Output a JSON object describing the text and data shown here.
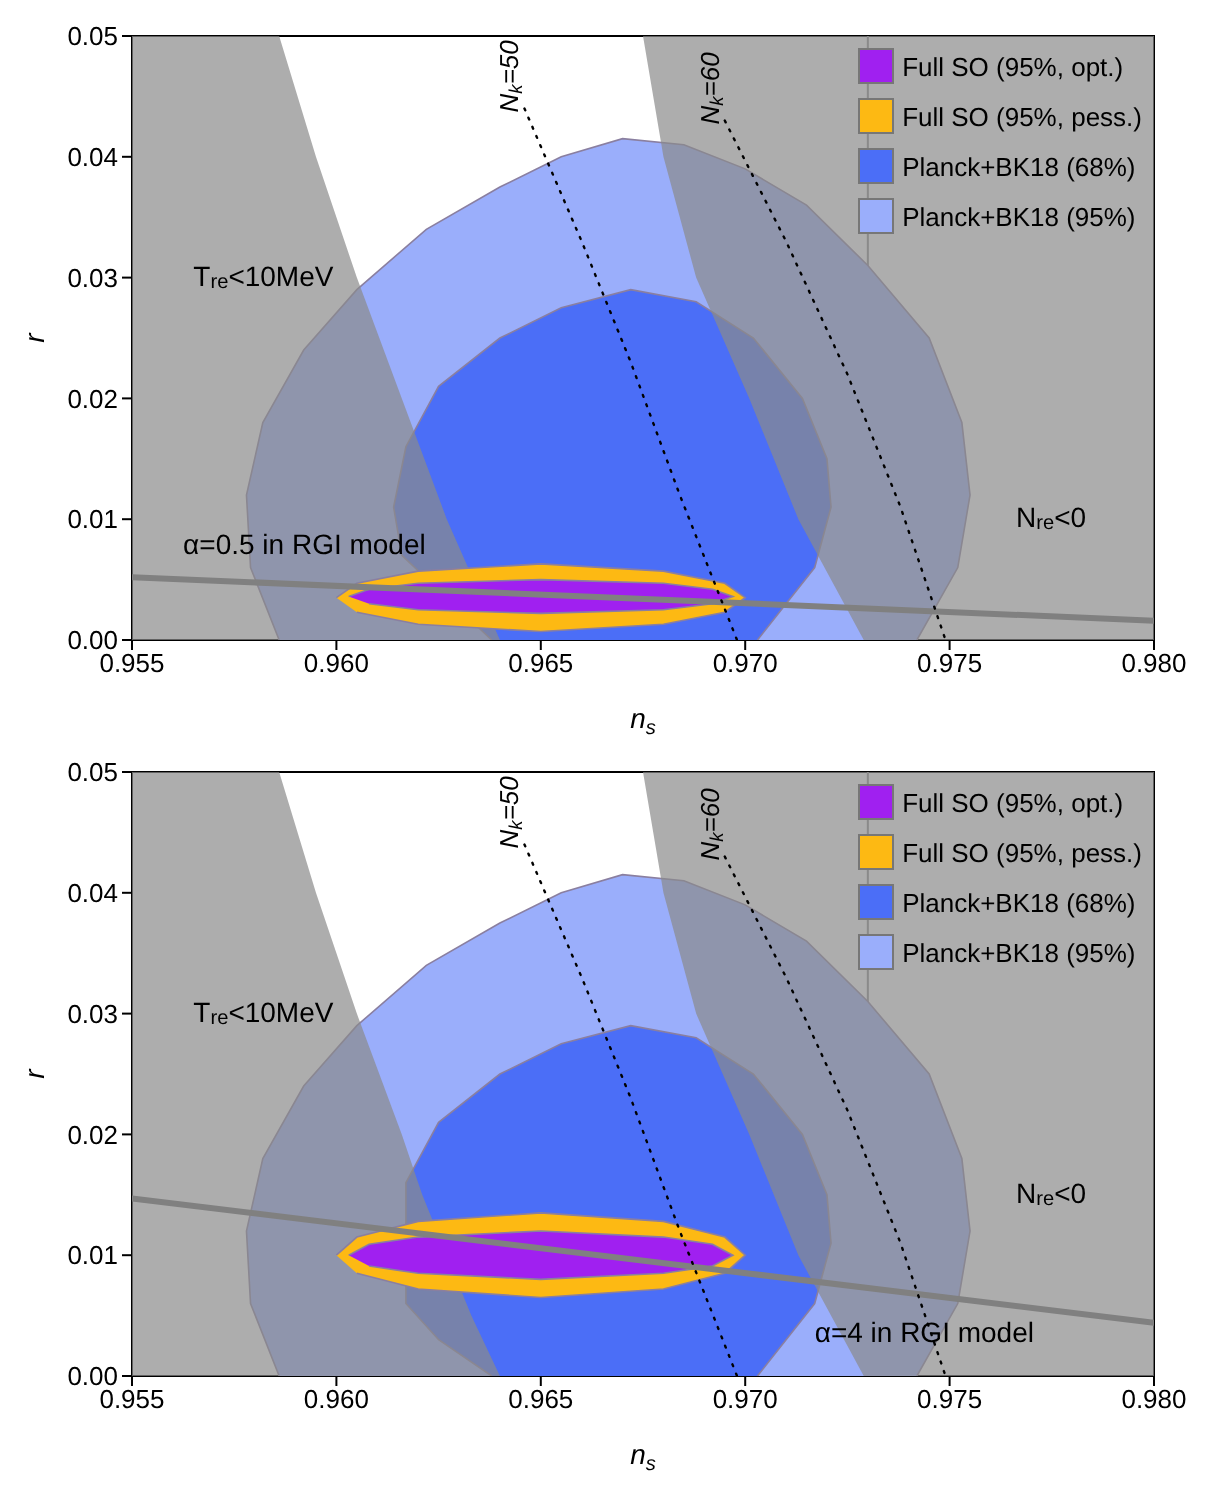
{
  "chart_data": [
    {
      "type": "area",
      "xlabel": "n$_{s}$",
      "ylabel": "r",
      "xlim": [
        0.955,
        0.98
      ],
      "ylim": [
        0,
        0.05
      ],
      "xticks": [
        0.955,
        {
          "value": 0.96,
          "label": "0.960"
        },
        0.965,
        {
          "value": 0.97,
          "label": "0.970"
        },
        0.975,
        {
          "value": 0.98,
          "label": "0.980"
        }
      ],
      "yticks": [
        {
          "value": 0,
          "label": "0.00"
        },
        0.01,
        0.02,
        0.03,
        0.04,
        0.05
      ],
      "legend": "top right",
      "series": [
        {
          "name": "Planck+BK18 (95%)",
          "color": "#9aaefb",
          "x": [
            0.9586,
            0.9579,
            0.9578,
            0.9582,
            0.9592,
            0.9605,
            0.9622,
            0.964,
            0.9655,
            0.967,
            0.9685,
            0.97,
            0.9715,
            0.973,
            0.9745,
            0.9753,
            0.9755,
            0.9752,
            0.9742
          ],
          "values": [
            0,
            0.006,
            0.012,
            0.018,
            0.024,
            0.029,
            0.034,
            0.0375,
            0.04,
            0.0415,
            0.041,
            0.039,
            0.036,
            0.031,
            0.025,
            0.018,
            0.012,
            0.006,
            0
          ]
        },
        {
          "name": "Planck+BK18 (68%)",
          "color": "#4b6ef7",
          "x": [
            0.9638,
            0.9616,
            0.9614,
            0.9617,
            0.9625,
            0.964,
            0.9655,
            0.9672,
            0.9688,
            0.9702,
            0.9714,
            0.972,
            0.9721,
            0.9717,
            0.971,
            0.9703
          ],
          "values": [
            0,
            0.007,
            0.011,
            0.016,
            0.021,
            0.025,
            0.0275,
            0.029,
            0.028,
            0.025,
            0.02,
            0.015,
            0.011,
            0.006,
            0.003,
            0
          ]
        },
        {
          "color": "#8a8a8a",
          "x": [
            0.955,
            0.9586,
            0.9595,
            0.9605,
            0.9616,
            0.9627,
            0.964,
            0.955
          ],
          "values": [
            0.05,
            0.05,
            0.04,
            0.03,
            0.02,
            0.01,
            0,
            0
          ]
        },
        {
          "color": "#8a8a8a",
          "x": [
            0.9675,
            0.98,
            0.98,
            0.9729,
            0.9713,
            0.9701,
            0.9688,
            0.968
          ],
          "values": [
            0.05,
            0.05,
            0,
            0,
            0.01,
            0.02,
            0.03,
            0.04
          ]
        },
        {
          "name": "Full SO (95%, pess.)",
          "color": "#fdb913",
          "x": [
            0.96,
            0.9605,
            0.962,
            0.965,
            0.968,
            0.9695,
            0.97,
            0.9695,
            0.968,
            0.965,
            0.962,
            0.9605
          ],
          "values": [
            0.0035,
            0.0047,
            0.0057,
            0.0063,
            0.0057,
            0.0047,
            0.0035,
            0.0023,
            0.0013,
            0.0007,
            0.0013,
            0.0023
          ]
        },
        {
          "name": "Full SO (95%, opt.)",
          "color": "#a020f0",
          "x": [
            0.9603,
            0.9608,
            0.962,
            0.965,
            0.968,
            0.9692,
            0.9697,
            0.9692,
            0.968,
            0.965,
            0.962,
            0.9608
          ],
          "values": [
            0.0036,
            0.0042,
            0.0047,
            0.005,
            0.0047,
            0.0042,
            0.0036,
            0.003,
            0.0025,
            0.0022,
            0.0025,
            0.003
          ]
        },
        {
          "type": "line",
          "color": "#808080",
          "x": [
            0.955,
            0.98
          ],
          "values": [
            0.0052,
            0.0016
          ]
        },
        {
          "name": "N$_{k}$=50",
          "type": "line",
          "line_style": "dotted",
          "color": "#000000",
          "x": [
            0.9646,
            0.966,
            0.9672,
            0.9684,
            0.9698
          ],
          "values": [
            0.044,
            0.033,
            0.023,
            0.012,
            0
          ]
        },
        {
          "name": "N$_{k}$=60",
          "type": "line",
          "line_style": "dotted",
          "color": "#000000",
          "x": [
            0.9695,
            0.971,
            0.9725,
            0.9738,
            0.9749
          ],
          "values": [
            0.043,
            0.033,
            0.022,
            0.011,
            0
          ]
        }
      ],
      "ref_lines": [
        {
          "axis": "x",
          "value": 0.973,
          "color": "#8a8a8a"
        }
      ],
      "annotations": [
        "T$_{re}$<10MeV",
        "N$_{re}$<0",
        "α=0.5 in RGI model"
      ]
    },
    {
      "type": "area",
      "xlabel": "n$_{s}$",
      "ylabel": "r",
      "xlim": [
        0.955,
        0.98
      ],
      "ylim": [
        0,
        0.05
      ],
      "xticks": [
        0.955,
        {
          "value": 0.96,
          "label": "0.960"
        },
        0.965,
        {
          "value": 0.97,
          "label": "0.970"
        },
        0.975,
        {
          "value": 0.98,
          "label": "0.980"
        }
      ],
      "yticks": [
        {
          "value": 0,
          "label": "0.00"
        },
        0.01,
        0.02,
        0.03,
        0.04,
        0.05
      ],
      "legend": "top right",
      "series": [
        {
          "name": "Planck+BK18 (95%)",
          "color": "#9aaefb",
          "x": [
            0.9586,
            0.9579,
            0.9578,
            0.9582,
            0.9592,
            0.9605,
            0.9622,
            0.964,
            0.9655,
            0.967,
            0.9685,
            0.97,
            0.9715,
            0.973,
            0.9745,
            0.9753,
            0.9755,
            0.9752,
            0.9742
          ],
          "values": [
            0,
            0.006,
            0.012,
            0.018,
            0.024,
            0.029,
            0.034,
            0.0375,
            0.04,
            0.0415,
            0.041,
            0.039,
            0.036,
            0.031,
            0.025,
            0.018,
            0.012,
            0.006,
            0
          ]
        },
        {
          "name": "Planck+BK18 (68%)",
          "color": "#4b6ef7",
          "x": [
            0.9638,
            0.9625,
            0.9617,
            0.9617,
            0.9625,
            0.964,
            0.9655,
            0.9672,
            0.9688,
            0.9702,
            0.9714,
            0.972,
            0.9721,
            0.9717,
            0.971,
            0.9703
          ],
          "values": [
            0,
            0.003,
            0.006,
            0.016,
            0.021,
            0.025,
            0.0275,
            0.029,
            0.028,
            0.025,
            0.02,
            0.015,
            0.011,
            0.006,
            0.003,
            0
          ]
        },
        {
          "color": "#8a8a8a",
          "x": [
            0.955,
            0.9586,
            0.9595,
            0.9605,
            0.9616,
            0.9621,
            0.9633,
            0.964,
            0.955
          ],
          "values": [
            0.05,
            0.05,
            0.04,
            0.03,
            0.02,
            0.015,
            0.005,
            0,
            0
          ]
        },
        {
          "color": "#8a8a8a",
          "x": [
            0.9675,
            0.98,
            0.98,
            0.9729,
            0.9713,
            0.9701,
            0.9688,
            0.968
          ],
          "values": [
            0.05,
            0.05,
            0,
            0,
            0.01,
            0.02,
            0.03,
            0.04
          ]
        },
        {
          "name": "Full SO (95%, pess.)",
          "color": "#fdb913",
          "x": [
            0.96,
            0.9605,
            0.962,
            0.965,
            0.968,
            0.9695,
            0.97,
            0.9695,
            0.968,
            0.965,
            0.962,
            0.9605
          ],
          "values": [
            0.01,
            0.0115,
            0.0128,
            0.0135,
            0.0128,
            0.0115,
            0.01,
            0.0085,
            0.0072,
            0.0065,
            0.0072,
            0.0085
          ]
        },
        {
          "name": "Full SO (95%, opt.)",
          "color": "#a020f0",
          "x": [
            0.9603,
            0.9608,
            0.962,
            0.965,
            0.968,
            0.9692,
            0.9697,
            0.9692,
            0.968,
            0.965,
            0.962,
            0.9608
          ],
          "values": [
            0.01,
            0.0109,
            0.0115,
            0.012,
            0.0115,
            0.0109,
            0.01,
            0.0091,
            0.0085,
            0.008,
            0.0085,
            0.0091
          ]
        },
        {
          "type": "line",
          "color": "#808080",
          "x": [
            0.955,
            0.98
          ],
          "values": [
            0.0147,
            0.0044
          ]
        },
        {
          "name": "N$_{k}$=50",
          "type": "line",
          "line_style": "dotted",
          "color": "#000000",
          "x": [
            0.9646,
            0.966,
            0.9672,
            0.9684,
            0.9698
          ],
          "values": [
            0.044,
            0.033,
            0.023,
            0.012,
            0
          ]
        },
        {
          "name": "N$_{k}$=60",
          "type": "line",
          "line_style": "dotted",
          "color": "#000000",
          "x": [
            0.9695,
            0.971,
            0.9725,
            0.9738,
            0.9749
          ],
          "values": [
            0.043,
            0.033,
            0.022,
            0.011,
            0
          ]
        }
      ],
      "ref_lines": [
        {
          "axis": "x",
          "value": 0.973,
          "color": "#8a8a8a"
        }
      ],
      "annotations": [
        "T$_{re}$<10MeV",
        "N$_{re}$<0",
        "α=4 in RGI model"
      ]
    }
  ]
}
